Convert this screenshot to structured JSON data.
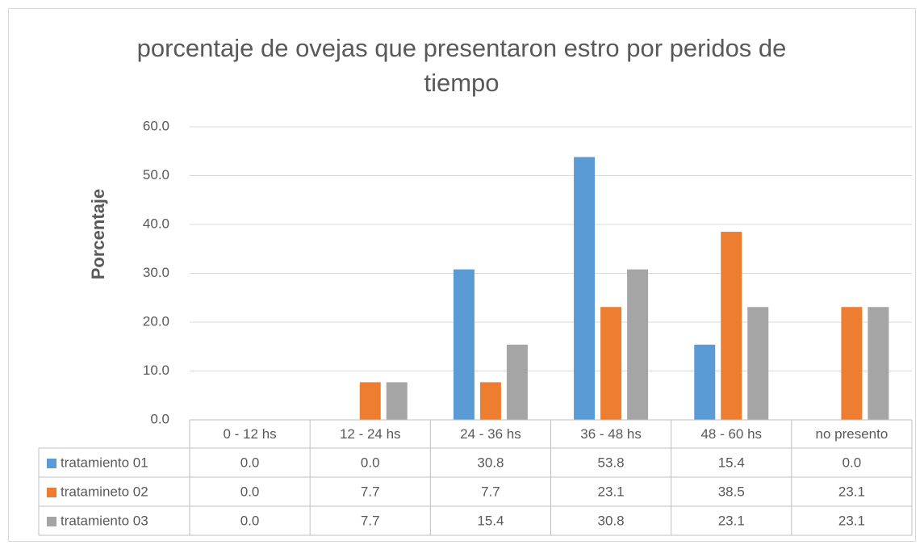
{
  "chart_data": {
    "type": "bar",
    "title": "porcentaje de ovejas que presentaron estro por peridos de tiempo",
    "y_label": "Porcentaje",
    "categories": [
      "0 - 12 hs",
      "12 - 24 hs",
      "24 - 36 hs",
      "36 - 48 hs",
      "48 - 60 hs",
      "no presento"
    ],
    "series": [
      {
        "name": "tratamiento 01",
        "color": "#5b9bd5",
        "values": [
          0,
          0,
          30.8,
          53.8,
          15.4,
          0
        ],
        "value_labels": [
          "0.0",
          "0.0",
          "30.8",
          "53.8",
          "15.4",
          "0.0"
        ]
      },
      {
        "name": "tratamineto 02",
        "color": "#ed7d31",
        "values": [
          0,
          7.7,
          7.7,
          23.1,
          38.5,
          23.1
        ],
        "value_labels": [
          "0.0",
          "7.7",
          "7.7",
          "23.1",
          "38.5",
          "23.1"
        ]
      },
      {
        "name": "tratamiento 03",
        "color": "#a5a5a5",
        "values": [
          0,
          7.7,
          15.4,
          30.8,
          23.1,
          23.1
        ],
        "value_labels": [
          "0.0",
          "7.7",
          "15.4",
          "30.8",
          "23.1",
          "23.1"
        ]
      }
    ],
    "ylim": [
      0,
      60
    ],
    "yticks": [
      {
        "value": 0,
        "label": "0.0"
      },
      {
        "value": 10,
        "label": "10.0"
      },
      {
        "value": 20,
        "label": "20.0"
      },
      {
        "value": 30,
        "label": "30.0"
      },
      {
        "value": 40,
        "label": "40.0"
      },
      {
        "value": 50,
        "label": "50.0"
      },
      {
        "value": 60,
        "label": "60.0"
      }
    ],
    "grid": true
  }
}
